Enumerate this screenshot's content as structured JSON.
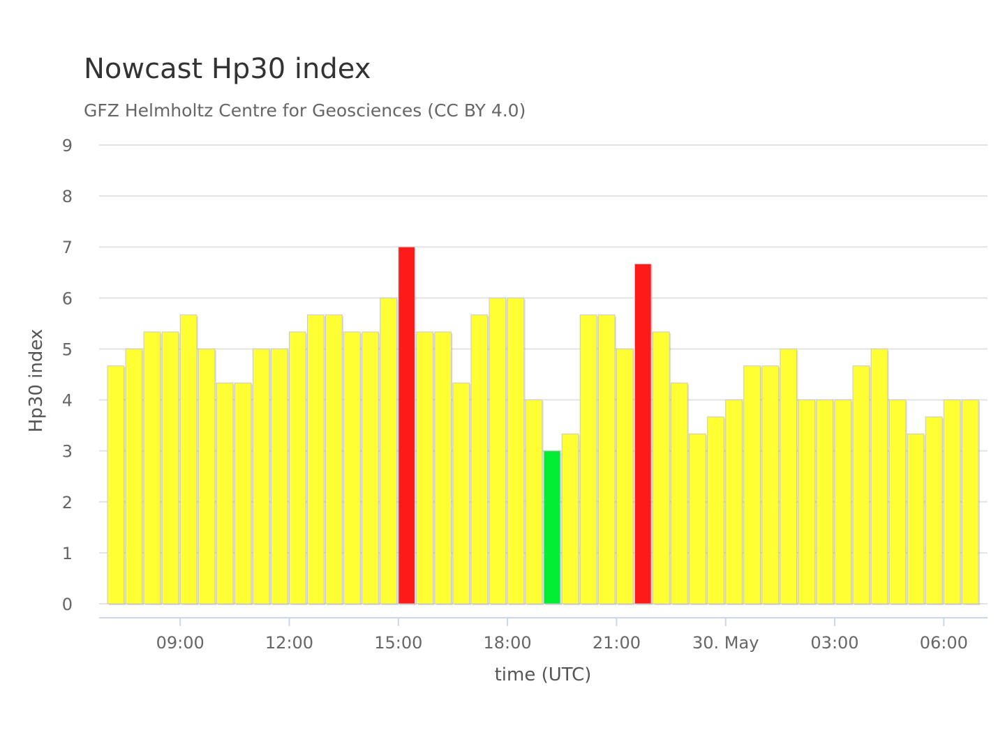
{
  "chart_data": {
    "type": "bar",
    "title": "Nowcast Hp30 index",
    "subtitle": "GFZ Helmholtz Centre for Geosciences (CC BY 4.0)",
    "xlabel": "time (UTC)",
    "ylabel": "Hp30 index",
    "ylim": [
      0,
      9
    ],
    "yticks": [
      0,
      1,
      2,
      3,
      4,
      5,
      6,
      7,
      8,
      9
    ],
    "xticks": [
      {
        "label": "09:00",
        "at": "09:00"
      },
      {
        "label": "12:00",
        "at": "12:00"
      },
      {
        "label": "15:00",
        "at": "15:00"
      },
      {
        "label": "18:00",
        "at": "18:00"
      },
      {
        "label": "21:00",
        "at": "21:00"
      },
      {
        "label": "30. May",
        "at": "00:00"
      },
      {
        "label": "03:00",
        "at": "03:00"
      },
      {
        "label": "06:00",
        "at": "06:00"
      }
    ],
    "grid": true,
    "legend": "none",
    "x_start": "07:00",
    "x_end": "07:30",
    "interval_minutes": 30,
    "values": [
      4.667,
      5.0,
      5.333,
      5.333,
      5.667,
      5.0,
      4.333,
      4.333,
      5.0,
      5.0,
      5.333,
      5.667,
      5.667,
      5.333,
      5.333,
      6.0,
      7.0,
      5.333,
      5.333,
      4.333,
      5.667,
      6.0,
      6.0,
      4.0,
      3.0,
      3.333,
      5.667,
      5.667,
      5.0,
      6.667,
      5.333,
      4.333,
      3.333,
      3.667,
      4.0,
      4.667,
      4.667,
      5.0,
      4.0,
      4.0,
      4.0,
      4.667,
      5.0,
      4.0,
      3.333,
      3.667,
      4.0,
      4.0
    ],
    "colors": {
      "low": "#00ee33",
      "moderate": "#ffff33",
      "high": "#ff1a1a"
    },
    "color_thresholds": {
      "moderate_from": 3.333,
      "high_from": 6.667
    }
  }
}
